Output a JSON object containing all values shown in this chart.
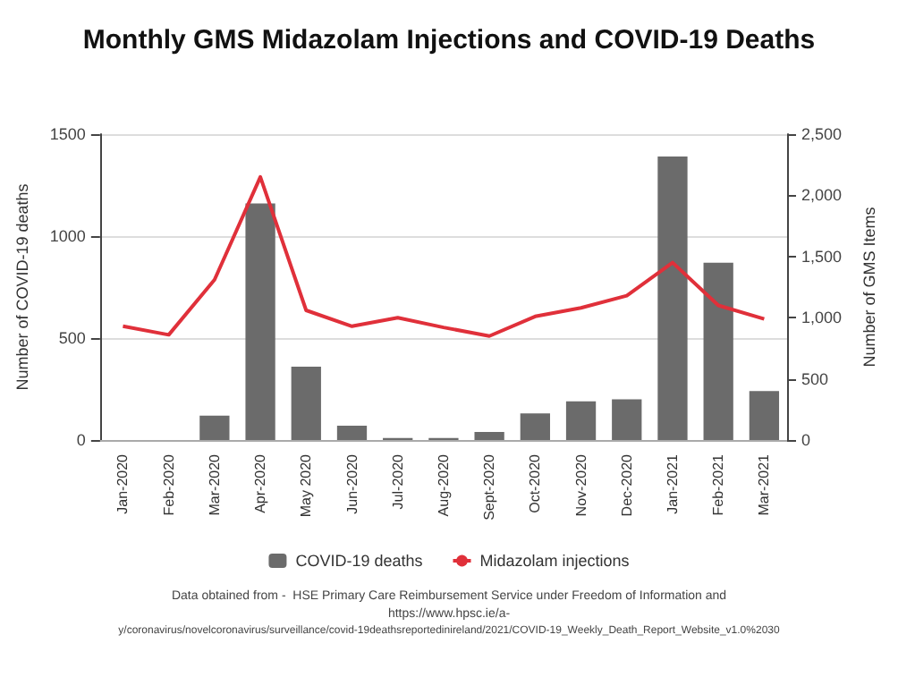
{
  "chart_data": {
    "type": "bar",
    "title": "Monthly GMS Midazolam Injections and COVID-19 Deaths",
    "ylabel": "Number of COVID-19 deaths",
    "y2label": "Number of GMS Items",
    "categories": [
      "Jan-2020",
      "Feb-2020",
      "Mar-2020",
      "Apr-2020",
      "May 2020",
      "Jun-2020",
      "Jul-2020",
      "Aug-2020",
      "Sept-2020",
      "Oct-2020",
      "Nov-2020",
      "Dec-2020",
      "Jan-2021",
      "Feb-2021",
      "Mar-2021"
    ],
    "series": [
      {
        "name": "COVID-19 deaths",
        "color": "#6b6b6b",
        "values": [
          0,
          0,
          120,
          1160,
          360,
          70,
          10,
          10,
          40,
          130,
          190,
          200,
          1390,
          870,
          240
        ]
      },
      {
        "name": "Midazolam injections",
        "type": "line",
        "axis": "y2",
        "color": "#e0303a",
        "values": [
          930,
          860,
          1310,
          2150,
          1060,
          930,
          1000,
          920,
          850,
          1010,
          1080,
          1180,
          1450,
          1100,
          990
        ]
      }
    ],
    "ylim": [
      0,
      1500
    ],
    "yticks": [
      0,
      500,
      1000,
      1500
    ],
    "y2lim": [
      0,
      2500
    ],
    "y2ticks": [
      0,
      {
        "value": 500,
        "label": "500"
      },
      {
        "value": 1000,
        "label": "1,000"
      },
      {
        "value": 1500,
        "label": "1,500"
      },
      {
        "value": 2000,
        "label": "2,000"
      },
      {
        "value": 2500,
        "label": "2,500"
      }
    ],
    "grid": "y",
    "legend": "bottom",
    "marker": "none",
    "line_style": "solid",
    "annotations": [
      "Data obtained from -  HSE Primary Care Reimbursement Service under Freedom of Information and",
      "https://www.hpsc.ie/a-",
      "y/coronavirus/novelcoronavirus/surveillance/covid-19deathsreportedinireland/2021/COVID-19_Weekly_Death_Report_Website_v1.0%2030"
    ]
  }
}
